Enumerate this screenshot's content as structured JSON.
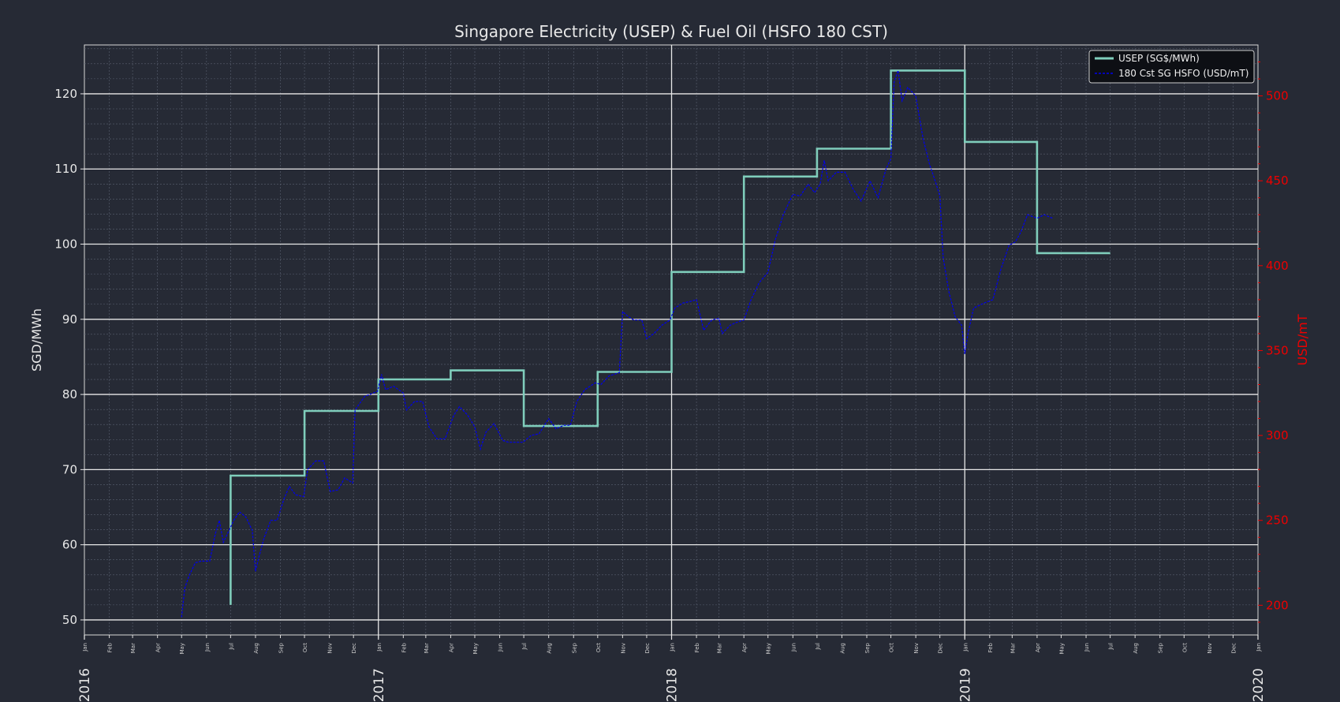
{
  "chart_data": {
    "type": "line",
    "title": "Singapore Electricity (USEP) & Fuel Oil (HSFO 180 CST)",
    "xlabel": "",
    "ylabel_left": "SGD/MWh",
    "ylabel_right": "USD/mT",
    "xlim": [
      "2016-01-01",
      "2020-01-01"
    ],
    "ylim_left": [
      48,
      126.5
    ],
    "ylim_right": [
      182.5,
      530
    ],
    "grid": true,
    "legend_position": "top-right",
    "x_year_ticks": [
      "2016",
      "2017",
      "2018",
      "2019",
      "2020"
    ],
    "x_month_ticks": [
      "Jan",
      "Feb",
      "Mar",
      "Apr",
      "May",
      "Jun",
      "Jul",
      "Aug",
      "Sep",
      "Oct",
      "Nov",
      "Dec"
    ],
    "y_left_ticks": [
      50,
      60,
      70,
      80,
      90,
      100,
      110,
      120
    ],
    "y_right_ticks": [
      200,
      250,
      300,
      350,
      400,
      450,
      500
    ],
    "colors": {
      "usep": "#7fcdbb",
      "hsfo": "#0000ee",
      "right_axis": "#ee0000",
      "background": "#262a35"
    },
    "series": [
      {
        "name": "USEP (SG$/MWh)",
        "axis": "left",
        "style": "step-solid",
        "points": [
          [
            "2016-07-01",
            52.0
          ],
          [
            "2016-07-01",
            69.2
          ],
          [
            "2016-10-01",
            69.2
          ],
          [
            "2016-10-01",
            77.8
          ],
          [
            "2017-01-01",
            77.8
          ],
          [
            "2017-01-01",
            82.0
          ],
          [
            "2017-04-01",
            82.0
          ],
          [
            "2017-04-01",
            83.2
          ],
          [
            "2017-07-01",
            83.2
          ],
          [
            "2017-07-01",
            75.8
          ],
          [
            "2017-10-01",
            75.8
          ],
          [
            "2017-10-01",
            83.0
          ],
          [
            "2018-01-01",
            83.0
          ],
          [
            "2018-01-01",
            96.3
          ],
          [
            "2018-04-01",
            96.3
          ],
          [
            "2018-04-01",
            109.0
          ],
          [
            "2018-07-01",
            109.0
          ],
          [
            "2018-07-01",
            112.7
          ],
          [
            "2018-10-01",
            112.7
          ],
          [
            "2018-10-01",
            123.1
          ],
          [
            "2019-01-01",
            123.1
          ],
          [
            "2019-01-01",
            113.6
          ],
          [
            "2019-04-01",
            113.6
          ],
          [
            "2019-04-01",
            98.8
          ],
          [
            "2019-07-01",
            98.8
          ]
        ]
      },
      {
        "name": "180 Cst SG HSFO (USD/mT)",
        "axis": "right",
        "style": "dashed",
        "points": [
          [
            "2016-05-01",
            193
          ],
          [
            "2016-05-05",
            210
          ],
          [
            "2016-05-10",
            217
          ],
          [
            "2016-05-18",
            225
          ],
          [
            "2016-05-25",
            226
          ],
          [
            "2016-06-05",
            226
          ],
          [
            "2016-06-12",
            242
          ],
          [
            "2016-06-17",
            250
          ],
          [
            "2016-06-22",
            237
          ],
          [
            "2016-06-28",
            243
          ],
          [
            "2016-07-05",
            250
          ],
          [
            "2016-07-12",
            255
          ],
          [
            "2016-07-20",
            252
          ],
          [
            "2016-07-28",
            244
          ],
          [
            "2016-08-01",
            220
          ],
          [
            "2016-08-05",
            228
          ],
          [
            "2016-08-12",
            240
          ],
          [
            "2016-08-20",
            250
          ],
          [
            "2016-08-28",
            250
          ],
          [
            "2016-09-05",
            262
          ],
          [
            "2016-09-12",
            270
          ],
          [
            "2016-09-20",
            265
          ],
          [
            "2016-09-30",
            264
          ],
          [
            "2016-10-05",
            280
          ],
          [
            "2016-10-15",
            285
          ],
          [
            "2016-10-25",
            285
          ],
          [
            "2016-11-02",
            267
          ],
          [
            "2016-11-12",
            268
          ],
          [
            "2016-11-20",
            275
          ],
          [
            "2016-11-30",
            272
          ],
          [
            "2016-12-03",
            315
          ],
          [
            "2016-12-15",
            323
          ],
          [
            "2016-12-31",
            326
          ],
          [
            "2017-01-05",
            336
          ],
          [
            "2017-01-10",
            327
          ],
          [
            "2017-01-20",
            329
          ],
          [
            "2017-02-01",
            325
          ],
          [
            "2017-02-05",
            315
          ],
          [
            "2017-02-15",
            320
          ],
          [
            "2017-02-25",
            320
          ],
          [
            "2017-03-05",
            305
          ],
          [
            "2017-03-15",
            298
          ],
          [
            "2017-03-25",
            298
          ],
          [
            "2017-04-05",
            312
          ],
          [
            "2017-04-12",
            317
          ],
          [
            "2017-04-22",
            312
          ],
          [
            "2017-05-01",
            305
          ],
          [
            "2017-05-08",
            292
          ],
          [
            "2017-05-15",
            302
          ],
          [
            "2017-05-25",
            307
          ],
          [
            "2017-06-05",
            297
          ],
          [
            "2017-06-12",
            296
          ],
          [
            "2017-06-20",
            296
          ],
          [
            "2017-06-30",
            296
          ],
          [
            "2017-07-10",
            300
          ],
          [
            "2017-07-20",
            301
          ],
          [
            "2017-08-01",
            310
          ],
          [
            "2017-08-10",
            304
          ],
          [
            "2017-08-20",
            306
          ],
          [
            "2017-08-28",
            306
          ],
          [
            "2017-09-05",
            320
          ],
          [
            "2017-09-15",
            327
          ],
          [
            "2017-09-28",
            331
          ],
          [
            "2017-10-05",
            330
          ],
          [
            "2017-10-15",
            335
          ],
          [
            "2017-10-28",
            337
          ],
          [
            "2017-11-01",
            373
          ],
          [
            "2017-11-08",
            370
          ],
          [
            "2017-11-15",
            368
          ],
          [
            "2017-11-25",
            368
          ],
          [
            "2017-12-01",
            357
          ],
          [
            "2017-12-10",
            360
          ],
          [
            "2017-12-20",
            365
          ],
          [
            "2017-12-30",
            368
          ],
          [
            "2018-01-05",
            375
          ],
          [
            "2018-01-15",
            378
          ],
          [
            "2018-01-25",
            379
          ],
          [
            "2018-02-01",
            380
          ],
          [
            "2018-02-10",
            362
          ],
          [
            "2018-02-20",
            368
          ],
          [
            "2018-03-01",
            369
          ],
          [
            "2018-03-05",
            360
          ],
          [
            "2018-03-15",
            365
          ],
          [
            "2018-03-25",
            367
          ],
          [
            "2018-04-01",
            368
          ],
          [
            "2018-04-10",
            380
          ],
          [
            "2018-04-20",
            390
          ],
          [
            "2018-05-01",
            396
          ],
          [
            "2018-05-10",
            415
          ],
          [
            "2018-05-20",
            430
          ],
          [
            "2018-06-01",
            442
          ],
          [
            "2018-06-10",
            441
          ],
          [
            "2018-06-20",
            448
          ],
          [
            "2018-06-28",
            443
          ],
          [
            "2018-07-05",
            448
          ],
          [
            "2018-07-10",
            462
          ],
          [
            "2018-07-15",
            450
          ],
          [
            "2018-07-25",
            455
          ],
          [
            "2018-08-05",
            455
          ],
          [
            "2018-08-15",
            445
          ],
          [
            "2018-08-25",
            438
          ],
          [
            "2018-09-05",
            450
          ],
          [
            "2018-09-15",
            440
          ],
          [
            "2018-09-25",
            457
          ],
          [
            "2018-10-01",
            463
          ],
          [
            "2018-10-05",
            508
          ],
          [
            "2018-10-10",
            515
          ],
          [
            "2018-10-15",
            497
          ],
          [
            "2018-10-22",
            505
          ],
          [
            "2018-11-01",
            500
          ],
          [
            "2018-11-10",
            475
          ],
          [
            "2018-11-18",
            460
          ],
          [
            "2018-11-25",
            450
          ],
          [
            "2018-12-01",
            441
          ],
          [
            "2018-12-05",
            405
          ],
          [
            "2018-12-12",
            385
          ],
          [
            "2018-12-20",
            370
          ],
          [
            "2018-12-28",
            365
          ],
          [
            "2019-01-01",
            348
          ],
          [
            "2019-01-05",
            360
          ],
          [
            "2019-01-12",
            375
          ],
          [
            "2019-01-25",
            378
          ],
          [
            "2019-02-05",
            380
          ],
          [
            "2019-02-15",
            398
          ],
          [
            "2019-02-25",
            412
          ],
          [
            "2019-03-05",
            414
          ],
          [
            "2019-03-12",
            420
          ],
          [
            "2019-03-20",
            430
          ],
          [
            "2019-04-01",
            428
          ],
          [
            "2019-04-10",
            430
          ],
          [
            "2019-04-20",
            428
          ]
        ]
      }
    ]
  }
}
